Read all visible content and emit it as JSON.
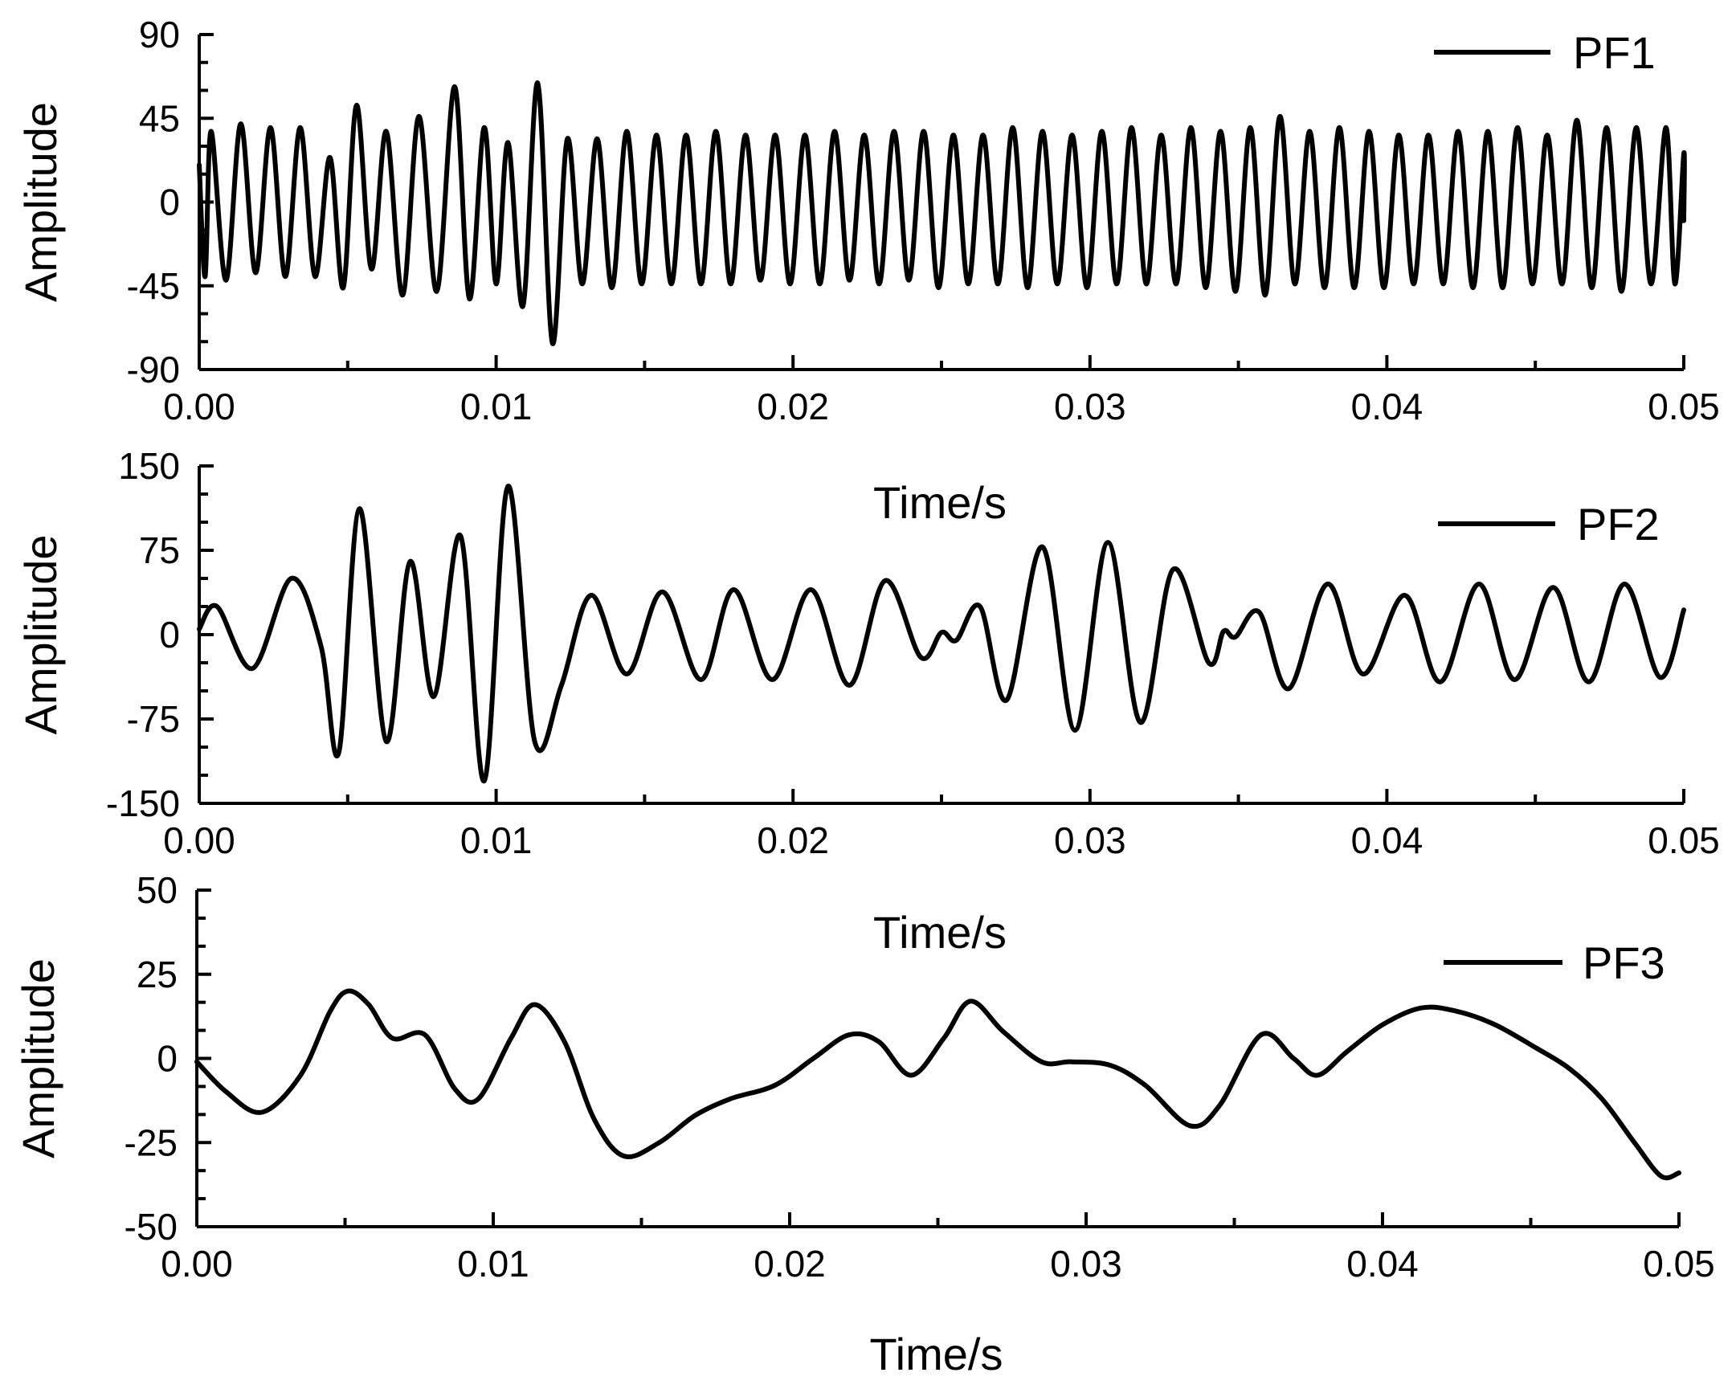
{
  "colors": {
    "line": "#000000",
    "axis": "#000000",
    "background": "#ffffff"
  },
  "chart_data": [
    {
      "type": "line",
      "xlabel": "Time/s",
      "ylabel": "Amplitude",
      "xlim": [
        0,
        0.05
      ],
      "ylim": [
        -90,
        90
      ],
      "x_ticks": [
        0,
        0.01,
        0.02,
        0.03,
        0.04,
        0.05
      ],
      "x_tick_labels": [
        "0.00",
        "0.01",
        "0.02",
        "0.03",
        "0.04",
        "0.05"
      ],
      "y_ticks": [
        90,
        45,
        0,
        -45,
        -90
      ],
      "y_tick_labels": [
        "90",
        "45",
        "0",
        "-45",
        "-90"
      ],
      "legend_position": "top-right",
      "grid": false,
      "series": [
        {
          "name": "PF1",
          "description": "dense oscillation, about 50 cycles across the window",
          "x": [
            0.0,
            0.0004,
            0.0014,
            0.0024,
            0.0034,
            0.0044,
            0.0053,
            0.0063,
            0.0074,
            0.0086,
            0.0096,
            0.0104,
            0.0114,
            0.0124,
            0.0134,
            0.0144,
            0.0154,
            0.0164,
            0.0174,
            0.0184,
            0.0194,
            0.0204,
            0.0214,
            0.0224,
            0.0234,
            0.0244,
            0.0254,
            0.0264,
            0.0274,
            0.0284,
            0.0294,
            0.0304,
            0.0314,
            0.0324,
            0.0334,
            0.0344,
            0.0354,
            0.0364,
            0.0374,
            0.0384,
            0.0394,
            0.0404,
            0.0414,
            0.0424,
            0.0434,
            0.0444,
            0.0454,
            0.0464,
            0.0474,
            0.0484,
            0.0494,
            0.05
          ],
          "peaks": [
            20,
            38,
            42,
            40,
            40,
            24,
            52,
            38,
            46,
            62,
            40,
            32,
            64,
            34,
            34,
            38,
            36,
            36,
            38,
            36,
            36,
            36,
            38,
            36,
            38,
            38,
            36,
            36,
            40,
            38,
            36,
            38,
            40,
            36,
            40,
            38,
            40,
            46,
            38,
            40,
            38,
            36,
            36,
            38,
            38,
            40,
            36,
            44,
            40,
            40,
            40,
            26
          ],
          "troughs": [
            -40,
            -42,
            -38,
            -40,
            -40,
            -46,
            -36,
            -50,
            -48,
            -52,
            -44,
            -56,
            -76,
            -44,
            -46,
            -44,
            -44,
            -44,
            -44,
            -42,
            -44,
            -44,
            -42,
            -44,
            -42,
            -46,
            -44,
            -44,
            -46,
            -44,
            -46,
            -44,
            -44,
            -44,
            -46,
            -48,
            -50,
            -44,
            -46,
            -46,
            -46,
            -44,
            -44,
            -46,
            -46,
            -44,
            -44,
            -46,
            -48,
            -44,
            -44,
            -10
          ]
        }
      ]
    },
    {
      "type": "line",
      "xlabel": "Time/s",
      "ylabel": "Amplitude",
      "xlim": [
        0,
        0.05
      ],
      "ylim": [
        -150,
        150
      ],
      "x_ticks": [
        0,
        0.01,
        0.02,
        0.03,
        0.04,
        0.05
      ],
      "x_tick_labels": [
        "0.00",
        "0.01",
        "0.02",
        "0.03",
        "0.04",
        "0.05"
      ],
      "y_ticks": [
        150,
        75,
        0,
        -75,
        -150
      ],
      "y_tick_labels": [
        "150",
        "75",
        "0",
        "-75",
        "-150"
      ],
      "legend_position": "top-right",
      "grid": false,
      "series": [
        {
          "name": "PF2",
          "x": [
            0.0,
            0.0006,
            0.0018,
            0.0031,
            0.0041,
            0.0047,
            0.0054,
            0.0063,
            0.0071,
            0.0079,
            0.0088,
            0.0096,
            0.0104,
            0.0113,
            0.0122,
            0.0132,
            0.0144,
            0.0156,
            0.0169,
            0.018,
            0.0193,
            0.0206,
            0.0219,
            0.0231,
            0.0243,
            0.025,
            0.0255,
            0.0263,
            0.0272,
            0.0284,
            0.0295,
            0.0306,
            0.0317,
            0.0328,
            0.034,
            0.0345,
            0.0349,
            0.0357,
            0.0367,
            0.038,
            0.0392,
            0.0406,
            0.0418,
            0.0431,
            0.0443,
            0.0456,
            0.0468,
            0.048,
            0.0492,
            0.05
          ],
          "y": [
            5,
            25,
            -30,
            50,
            -10,
            -105,
            112,
            -95,
            65,
            -55,
            88,
            -130,
            132,
            -95,
            -45,
            35,
            -35,
            38,
            -40,
            40,
            -40,
            40,
            -45,
            48,
            -20,
            2,
            -5,
            25,
            -58,
            78,
            -85,
            82,
            -78,
            58,
            -25,
            3,
            -2,
            20,
            -48,
            45,
            -35,
            35,
            -42,
            45,
            -40,
            42,
            -42,
            45,
            -38,
            22
          ]
        }
      ]
    },
    {
      "type": "line",
      "xlabel": "Time/s",
      "ylabel": "Amplitude",
      "xlim": [
        0,
        0.05
      ],
      "ylim": [
        -50,
        50
      ],
      "x_ticks": [
        0,
        0.01,
        0.02,
        0.03,
        0.04,
        0.05
      ],
      "x_tick_labels": [
        "0.00",
        "0.01",
        "0.02",
        "0.03",
        "0.04",
        "0.05"
      ],
      "y_ticks": [
        50,
        25,
        0,
        -25,
        -50
      ],
      "y_tick_labels": [
        "50",
        "25",
        "0",
        "-25",
        "-50"
      ],
      "legend_position": "top-right",
      "grid": false,
      "series": [
        {
          "name": "PF3",
          "x": [
            0.0,
            0.001,
            0.0022,
            0.0035,
            0.0045,
            0.0051,
            0.0058,
            0.0066,
            0.0077,
            0.0087,
            0.0095,
            0.0106,
            0.0114,
            0.0124,
            0.0134,
            0.0144,
            0.0156,
            0.0168,
            0.018,
            0.0195,
            0.0208,
            0.022,
            0.023,
            0.0241,
            0.0252,
            0.0261,
            0.0272,
            0.0285,
            0.0295,
            0.0308,
            0.032,
            0.0335,
            0.0345,
            0.0359,
            0.037,
            0.0378,
            0.0388,
            0.04,
            0.0413,
            0.0425,
            0.0438,
            0.0452,
            0.0463,
            0.0474,
            0.0485,
            0.0494,
            0.05
          ],
          "y": [
            -1,
            -10,
            -16,
            -5,
            14,
            20,
            16,
            6,
            7,
            -9,
            -12,
            6,
            16,
            5,
            -18,
            -29,
            -25,
            -17,
            -12,
            -8,
            0,
            7,
            5,
            -5,
            6,
            17,
            8,
            -1,
            -1,
            -2,
            -8,
            -20,
            -14,
            7,
            0,
            -5,
            2,
            10,
            15,
            14,
            10,
            3,
            -3,
            -12,
            -25,
            -35,
            -34
          ]
        }
      ]
    }
  ]
}
